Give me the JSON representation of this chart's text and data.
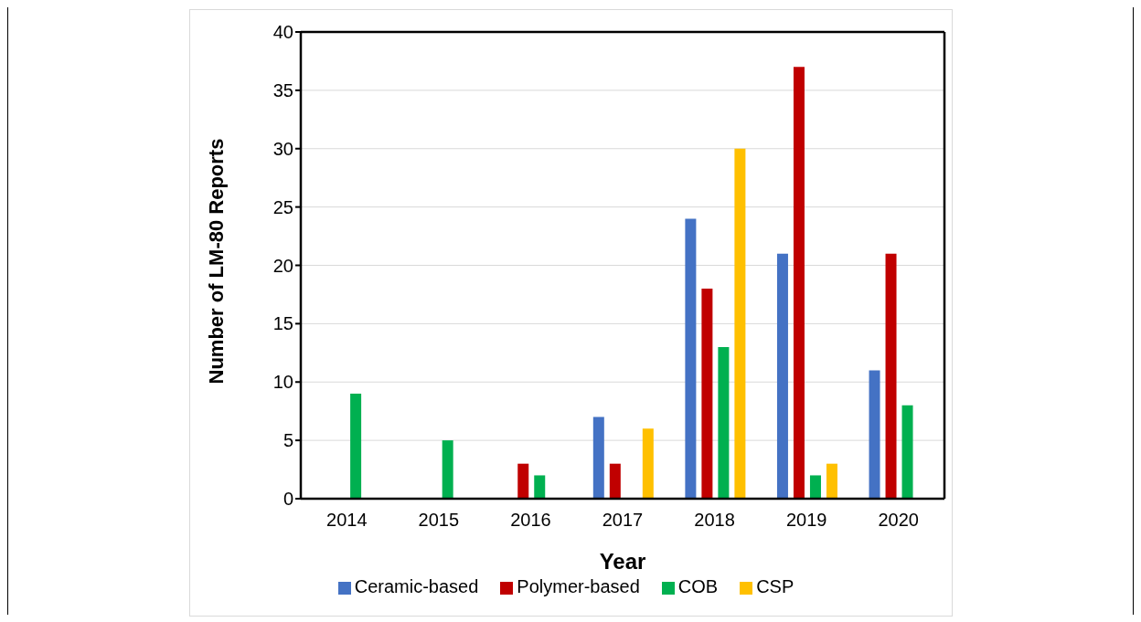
{
  "chart_data": {
    "type": "bar",
    "xlabel": "Year",
    "ylabel": "Number of LM-80 Reports",
    "categories": [
      "2014",
      "2015",
      "2016",
      "2017",
      "2018",
      "2019",
      "2020"
    ],
    "series": [
      {
        "name": "Ceramic-based",
        "color": "#4472c4",
        "values": [
          0,
          0,
          0,
          7,
          24,
          21,
          11
        ]
      },
      {
        "name": "Polymer-based",
        "color": "#c00000",
        "values": [
          0,
          0,
          3,
          3,
          18,
          37,
          21
        ]
      },
      {
        "name": "COB",
        "color": "#00b050",
        "values": [
          9,
          5,
          2,
          0,
          13,
          2,
          8
        ]
      },
      {
        "name": "CSP",
        "color": "#ffc000",
        "values": [
          0,
          0,
          0,
          6,
          30,
          3,
          0
        ]
      }
    ],
    "ylim": [
      0,
      40
    ],
    "yticks": [
      0,
      5,
      10,
      15,
      20,
      25,
      30,
      35,
      40
    ],
    "grid": "y",
    "legend": "bottom"
  }
}
